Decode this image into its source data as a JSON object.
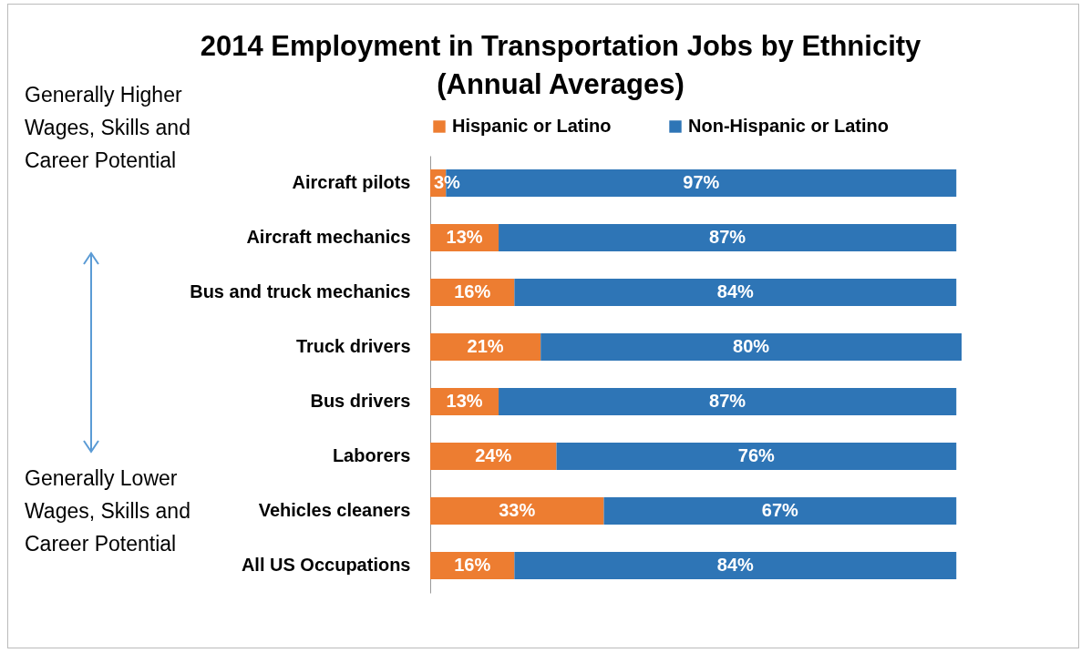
{
  "chart_data": {
    "type": "bar",
    "orientation": "horizontal",
    "stacked": true,
    "title": "2014 Employment in Transportation Jobs by Ethnicity (Annual Averages)",
    "categories": [
      "Aircraft pilots",
      "Aircraft mechanics",
      "Bus and truck mechanics",
      "Truck drivers",
      "Bus drivers",
      "Laborers",
      "Vehicles cleaners",
      "All US Occupations"
    ],
    "series": [
      {
        "name": "Hispanic or Latino",
        "color": "#ed7d31",
        "values": [
          3,
          13,
          16,
          21,
          13,
          24,
          33,
          16
        ],
        "value_labels": [
          "3%",
          "13%",
          "16%",
          "21%",
          "13%",
          "24%",
          "33%",
          "16%"
        ]
      },
      {
        "name": "Non-Hispanic or Latino",
        "color": "#2e75b6",
        "values": [
          97,
          87,
          84,
          80,
          87,
          76,
          67,
          84
        ],
        "value_labels": [
          "97%",
          "87%",
          "84%",
          "80%",
          "87%",
          "76%",
          "67%",
          "84%"
        ]
      }
    ],
    "legend": "top",
    "grid": false,
    "annotations": [
      "Generally Higher Wages, Skills and Career Potential",
      "Generally Lower Wages, Skills and Career Potential"
    ]
  }
}
